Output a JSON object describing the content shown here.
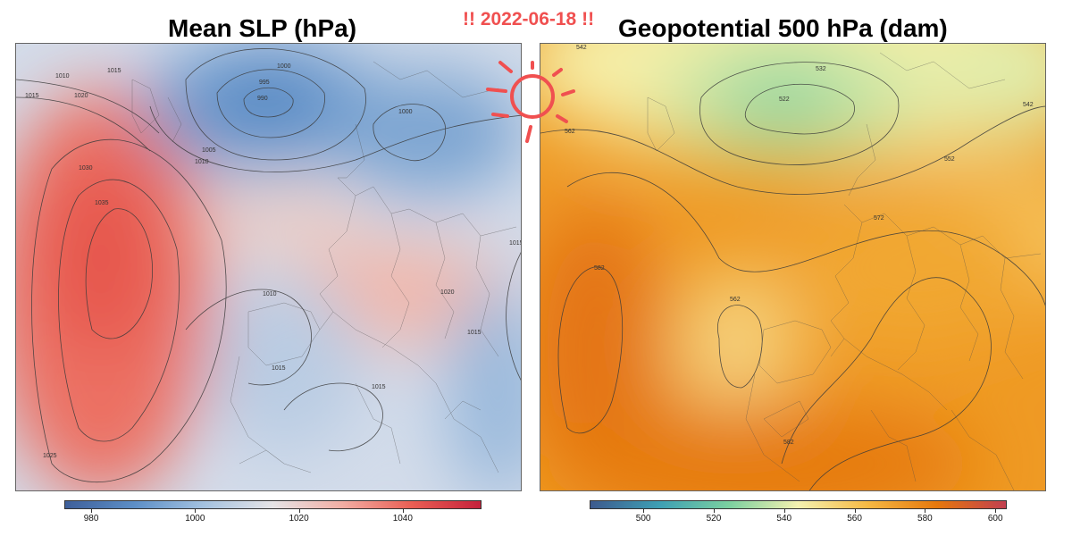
{
  "panels": {
    "slp": {
      "title": "Mean SLP (hPa)",
      "colorbar": {
        "ticks": [
          "980",
          "1000",
          "1020",
          "1040"
        ],
        "tick_values": [
          980,
          1000,
          1020,
          1040
        ],
        "range": [
          975,
          1055
        ],
        "colors": [
          "#3e5f9a",
          "#5d8fc7",
          "#a4c2e0",
          "#e6e4e6",
          "#f2aea4",
          "#ea5f54",
          "#c5213b"
        ]
      },
      "contour_labels": [
        "1010",
        "1015",
        "1020",
        "1000",
        "995",
        "990",
        "1005",
        "1010",
        "1030",
        "1035",
        "1020",
        "1010",
        "1015",
        "1015",
        "1015",
        "1025",
        "1000",
        "1015"
      ]
    },
    "z500": {
      "title": "Geopotential 500 hPa (dam)",
      "colorbar": {
        "ticks": [
          "500",
          "520",
          "540",
          "560",
          "580",
          "600"
        ],
        "tick_values": [
          500,
          520,
          540,
          560,
          580,
          600
        ],
        "range": [
          485,
          603
        ],
        "colors": [
          "#3d5a8e",
          "#3ea0b4",
          "#7bd0a0",
          "#f5f2b0",
          "#f6b944",
          "#e5780d",
          "#c23f50"
        ]
      },
      "contour_labels": [
        "542",
        "532",
        "522",
        "542",
        "562",
        "552",
        "572",
        "582",
        "562",
        "582"
      ]
    }
  },
  "annotation": {
    "date_text": "!! 2022-06-18 !!",
    "color": "#f05050",
    "icon": "sun-icon"
  }
}
